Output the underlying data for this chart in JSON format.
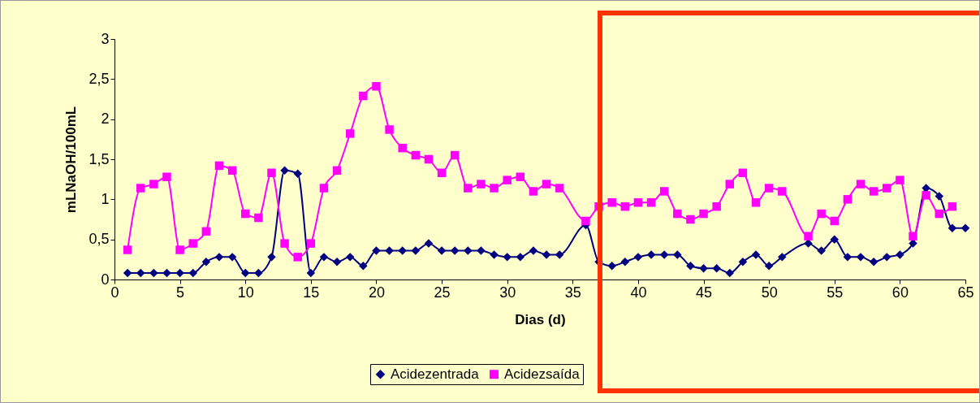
{
  "chart_data": {
    "type": "line",
    "xlabel": "Dias (d)",
    "ylabel": "mLNaOH/100mL",
    "xlim": [
      0,
      65
    ],
    "xticks": [
      0,
      5,
      10,
      15,
      20,
      25,
      30,
      35,
      40,
      45,
      50,
      55,
      60,
      65
    ],
    "ylim": [
      0,
      3
    ],
    "yticks": [
      {
        "value": 0,
        "label": "0"
      },
      {
        "value": 0.5,
        "label": "0,5"
      },
      {
        "value": 1,
        "label": "1"
      },
      {
        "value": 1.5,
        "label": "1,5"
      },
      {
        "value": 2,
        "label": "2"
      },
      {
        "value": 2.5,
        "label": "2,5"
      },
      {
        "value": 3,
        "label": "3"
      }
    ],
    "grid": false,
    "legend": "bottom",
    "series": [
      {
        "name": "Acidezentrada",
        "color": "#000080",
        "marker": "diamond",
        "x": [
          1,
          2,
          3,
          4,
          5,
          6,
          7,
          8,
          9,
          10,
          11,
          12,
          13,
          14,
          15,
          16,
          17,
          18,
          19,
          20,
          21,
          22,
          23,
          24,
          25,
          26,
          27,
          28,
          29,
          30,
          31,
          32,
          33,
          34,
          36,
          37,
          38,
          39,
          40,
          41,
          42,
          43,
          44,
          45,
          46,
          47,
          48,
          49,
          50,
          51,
          53,
          54,
          55,
          56,
          57,
          58,
          59,
          60,
          61,
          62,
          63,
          64,
          65
        ],
        "values": [
          0.08,
          0.08,
          0.08,
          0.08,
          0.08,
          0.08,
          0.22,
          0.28,
          0.28,
          0.08,
          0.08,
          0.28,
          1.36,
          1.32,
          0.08,
          0.28,
          0.22,
          0.28,
          0.17,
          0.36,
          0.36,
          0.36,
          0.36,
          0.45,
          0.36,
          0.36,
          0.36,
          0.36,
          0.31,
          0.28,
          0.28,
          0.36,
          0.31,
          0.31,
          0.68,
          0.22,
          0.17,
          0.22,
          0.28,
          0.31,
          0.31,
          0.31,
          0.17,
          0.14,
          0.14,
          0.08,
          0.22,
          0.31,
          0.17,
          0.28,
          0.45,
          0.36,
          0.5,
          0.28,
          0.28,
          0.22,
          0.28,
          0.31,
          0.45,
          1.14,
          1.04,
          0.64,
          0.64
        ]
      },
      {
        "name": "Acidezsaída",
        "color": "#ff00ff",
        "marker": "square",
        "x": [
          1,
          2,
          3,
          4,
          5,
          6,
          7,
          8,
          9,
          10,
          11,
          12,
          13,
          14,
          15,
          16,
          17,
          18,
          19,
          20,
          21,
          22,
          23,
          24,
          25,
          26,
          27,
          28,
          29,
          30,
          31,
          32,
          33,
          34,
          36,
          37,
          38,
          39,
          40,
          41,
          42,
          43,
          44,
          45,
          46,
          47,
          48,
          49,
          50,
          51,
          53,
          54,
          55,
          56,
          57,
          58,
          59,
          60,
          61,
          62,
          63,
          64
        ],
        "values": [
          0.37,
          1.14,
          1.19,
          1.28,
          0.37,
          0.45,
          0.6,
          1.42,
          1.36,
          0.82,
          0.77,
          1.33,
          0.45,
          0.28,
          0.45,
          1.14,
          1.36,
          1.82,
          2.29,
          2.41,
          1.87,
          1.64,
          1.55,
          1.5,
          1.33,
          1.55,
          1.14,
          1.19,
          1.14,
          1.24,
          1.28,
          1.1,
          1.19,
          1.14,
          0.73,
          0.91,
          0.96,
          0.91,
          0.96,
          0.96,
          1.1,
          0.82,
          0.75,
          0.82,
          0.91,
          1.19,
          1.33,
          0.96,
          1.14,
          1.1,
          0.54,
          0.82,
          0.73,
          1.0,
          1.19,
          1.1,
          1.14,
          1.24,
          0.54,
          1.05,
          0.82,
          0.91
        ]
      }
    ]
  }
}
